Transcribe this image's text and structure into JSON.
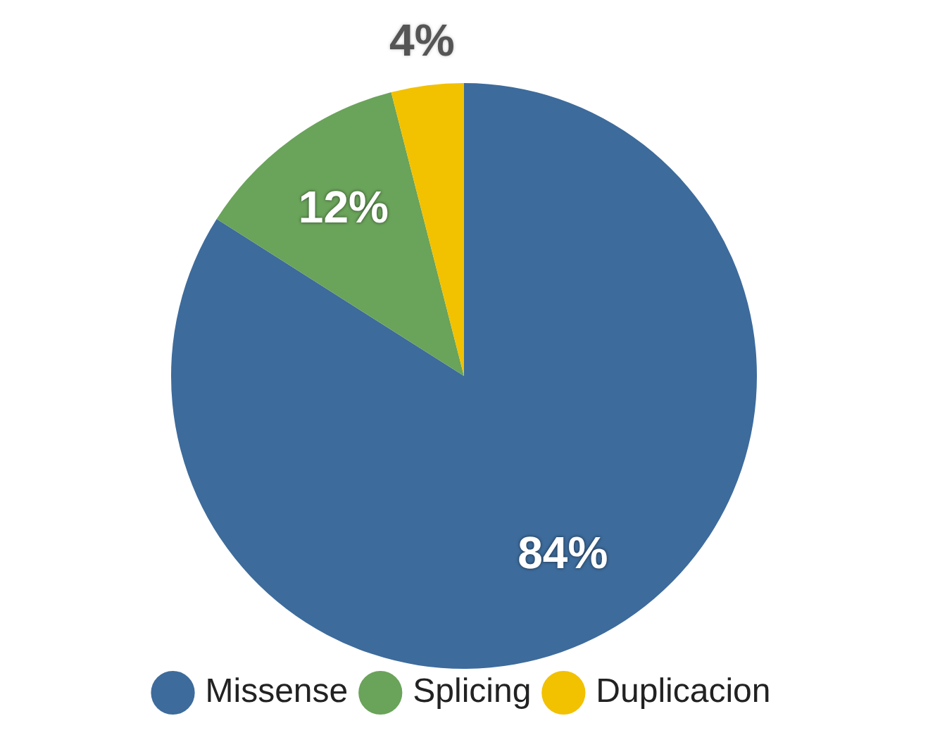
{
  "chart_data": {
    "type": "pie",
    "categories": [
      "Missense",
      "Splicing",
      "Duplicacion"
    ],
    "values": [
      84,
      12,
      4
    ],
    "colors": [
      "#3d6b9b",
      "#6aa35a",
      "#f2c100"
    ],
    "value_labels": [
      "84%",
      "12%",
      "4%"
    ],
    "legend": "bottom"
  }
}
